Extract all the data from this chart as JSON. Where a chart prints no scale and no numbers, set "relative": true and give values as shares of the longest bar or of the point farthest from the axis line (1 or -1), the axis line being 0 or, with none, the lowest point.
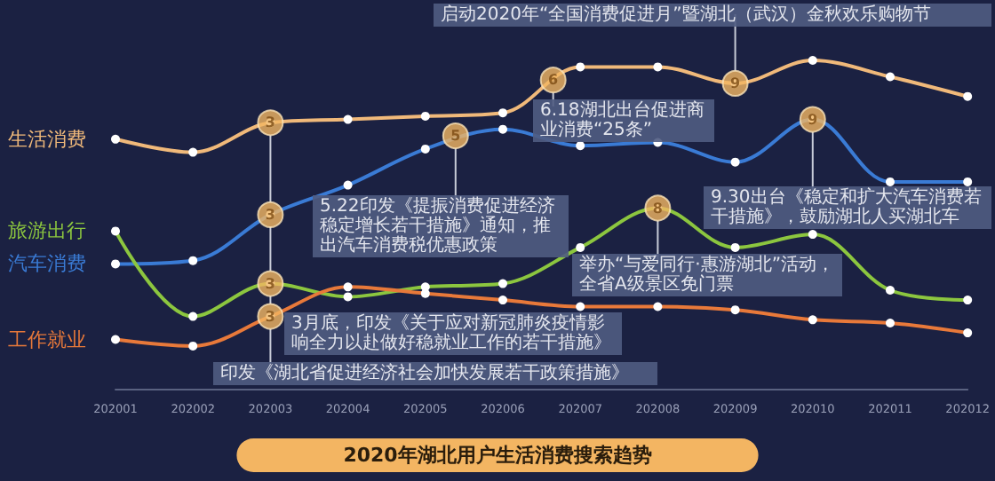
{
  "chart_data": {
    "type": "line",
    "title": "2020年湖北用户生活消费搜索趋势",
    "relative": true,
    "categories": [
      "202001",
      "202002",
      "202003",
      "202004",
      "202005",
      "202006",
      "202007",
      "202008",
      "202009",
      "202010",
      "202011",
      "202012"
    ],
    "series": [
      {
        "name": "生活消费",
        "color": "#f0b97a",
        "values": [
          0.76,
          0.72,
          0.81,
          0.82,
          0.83,
          0.84,
          0.98,
          0.98,
          0.93,
          1,
          0.95,
          0.89
        ]
      },
      {
        "name": "汽车消费",
        "color": "#3a7bd5",
        "values": [
          0.38,
          0.39,
          0.53,
          0.62,
          0.73,
          0.79,
          0.74,
          0.75,
          0.69,
          0.82,
          0.63,
          0.63
        ]
      },
      {
        "name": "旅游出行",
        "color": "#8cc63f",
        "values": [
          0.48,
          0.22,
          0.32,
          0.28,
          0.31,
          0.32,
          0.43,
          0.55,
          0.43,
          0.47,
          0.3,
          0.27
        ]
      },
      {
        "name": "工作就业",
        "color": "#e8793a",
        "values": [
          0.15,
          0.13,
          0.22,
          0.31,
          0.29,
          0.27,
          0.25,
          0.25,
          0.24,
          0.21,
          0.2,
          0.17
        ]
      }
    ],
    "marker": "circle",
    "legend": false,
    "grid": false,
    "line_style": "solid",
    "annotations": [
      {
        "text": "3",
        "x": "202003",
        "y": 0.81
      },
      {
        "text": "3",
        "x": "202003",
        "y": 0.53
      },
      {
        "text": "3",
        "x": "202003",
        "y": 0.32
      },
      {
        "text": "3",
        "x": "202003",
        "y": 0.22
      },
      {
        "text": "5",
        "y": 0.77
      },
      {
        "text": "6",
        "y": 0.94
      },
      {
        "text": "8",
        "x": "202008",
        "y": 0.55
      },
      {
        "text": "9",
        "x": "202009",
        "y": 0.93
      },
      {
        "text": "9",
        "x": "202010",
        "y": 0.82
      },
      "启动2020年“全国消费促进月”暨湖北（武汉）金秋欢乐购物节",
      "6.18湖北出台促进商业消费“25条”",
      "5.22印发《提振消费促进经济稳定增长若干措施》通知，推出汽车消费税优惠政策",
      "9.30出台《稳定和扩大汽车消费若干措施》，鼓励湖北人买湖北车",
      "举办“与爱同行·惠游湖北”活动，全省A级景区免门票",
      "3月底，印发《关于应对新冠肺炎疫情影响全力以赴做好稳就业工作的若干措施》",
      "印发《湖北省促进经济社会加快发展若干政策措施》"
    ]
  }
}
